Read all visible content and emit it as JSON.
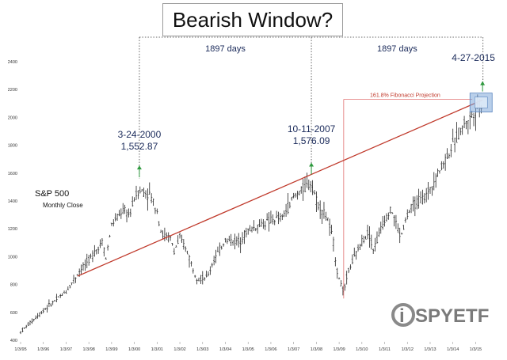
{
  "chart_data": {
    "type": "ohlc",
    "title": "Bearish Window?",
    "ylim": [
      400,
      2400
    ],
    "y_ticks": [
      "400",
      "600",
      "800",
      "1000",
      "1200",
      "1400",
      "1600",
      "1800",
      "2000",
      "2200",
      "2400"
    ],
    "x_ticks": [
      "1/3/95",
      "1/3/96",
      "1/3/97",
      "1/3/98",
      "1/3/99",
      "1/3/00",
      "1/3/01",
      "1/3/02",
      "1/3/03",
      "1/3/04",
      "1/3/05",
      "1/3/06",
      "1/3/07",
      "1/3/08",
      "1/3/09",
      "1/3/10",
      "1/3/11",
      "1/3/12",
      "1/3/13",
      "1/3/14",
      "1/3/15"
    ],
    "series_label": "S&P 500",
    "series_sublabel": "Monthly Close",
    "annotations": {
      "peak1": {
        "date": "3-24-2000",
        "value": "1,552.87"
      },
      "peak2": {
        "date": "10-11-2007",
        "value": "1,576.09"
      },
      "target": {
        "date": "4-27-2015"
      },
      "span1": "1897 days",
      "span2": "1897 days",
      "fib_label": "161.8% Fibonacci Projection"
    },
    "anchors": [
      [
        1995.0,
        460
      ],
      [
        1996.0,
        615
      ],
      [
        1997.0,
        750
      ],
      [
        1997.6,
        900
      ],
      [
        1998.0,
        975
      ],
      [
        1998.6,
        1110
      ],
      [
        1998.75,
        985
      ],
      [
        1999.0,
        1230
      ],
      [
        1999.5,
        1330
      ],
      [
        1999.8,
        1300
      ],
      [
        2000.0,
        1420
      ],
      [
        2000.2,
        1480
      ],
      [
        2000.7,
        1440
      ],
      [
        2001.0,
        1330
      ],
      [
        2001.2,
        1160
      ],
      [
        2001.6,
        1130
      ],
      [
        2001.75,
        1040
      ],
      [
        2002.0,
        1130
      ],
      [
        2002.3,
        1050
      ],
      [
        2002.6,
        900
      ],
      [
        2002.8,
        840
      ],
      [
        2003.2,
        850
      ],
      [
        2003.5,
        980
      ],
      [
        2004.0,
        1120
      ],
      [
        2004.6,
        1110
      ],
      [
        2005.0,
        1190
      ],
      [
        2006.0,
        1260
      ],
      [
        2006.5,
        1280
      ],
      [
        2007.0,
        1430
      ],
      [
        2007.5,
        1500
      ],
      [
        2007.8,
        1530
      ],
      [
        2008.0,
        1400
      ],
      [
        2008.5,
        1270
      ],
      [
        2008.75,
        1100
      ],
      [
        2008.9,
        900
      ],
      [
        2009.2,
        740
      ],
      [
        2009.4,
        900
      ],
      [
        2010.0,
        1110
      ],
      [
        2010.3,
        1180
      ],
      [
        2010.5,
        1050
      ],
      [
        2011.0,
        1270
      ],
      [
        2011.3,
        1340
      ],
      [
        2011.7,
        1140
      ],
      [
        2012.0,
        1300
      ],
      [
        2012.3,
        1380
      ],
      [
        2012.8,
        1430
      ],
      [
        2013.0,
        1490
      ],
      [
        2013.5,
        1650
      ],
      [
        2014.0,
        1800
      ],
      [
        2014.5,
        1960
      ],
      [
        2014.8,
        2000
      ],
      [
        2015.0,
        2060
      ],
      [
        2015.3,
        2100
      ]
    ]
  },
  "colors": {
    "bar": "#222222",
    "trendline": "#c0392b",
    "fib_line": "#e07070",
    "arrow": "#2f9a3f",
    "annotation": "#1a2a5a",
    "axis_text": "#333333",
    "target_box": "#7fa7d9"
  },
  "logo": {
    "text": "SPYETF"
  }
}
